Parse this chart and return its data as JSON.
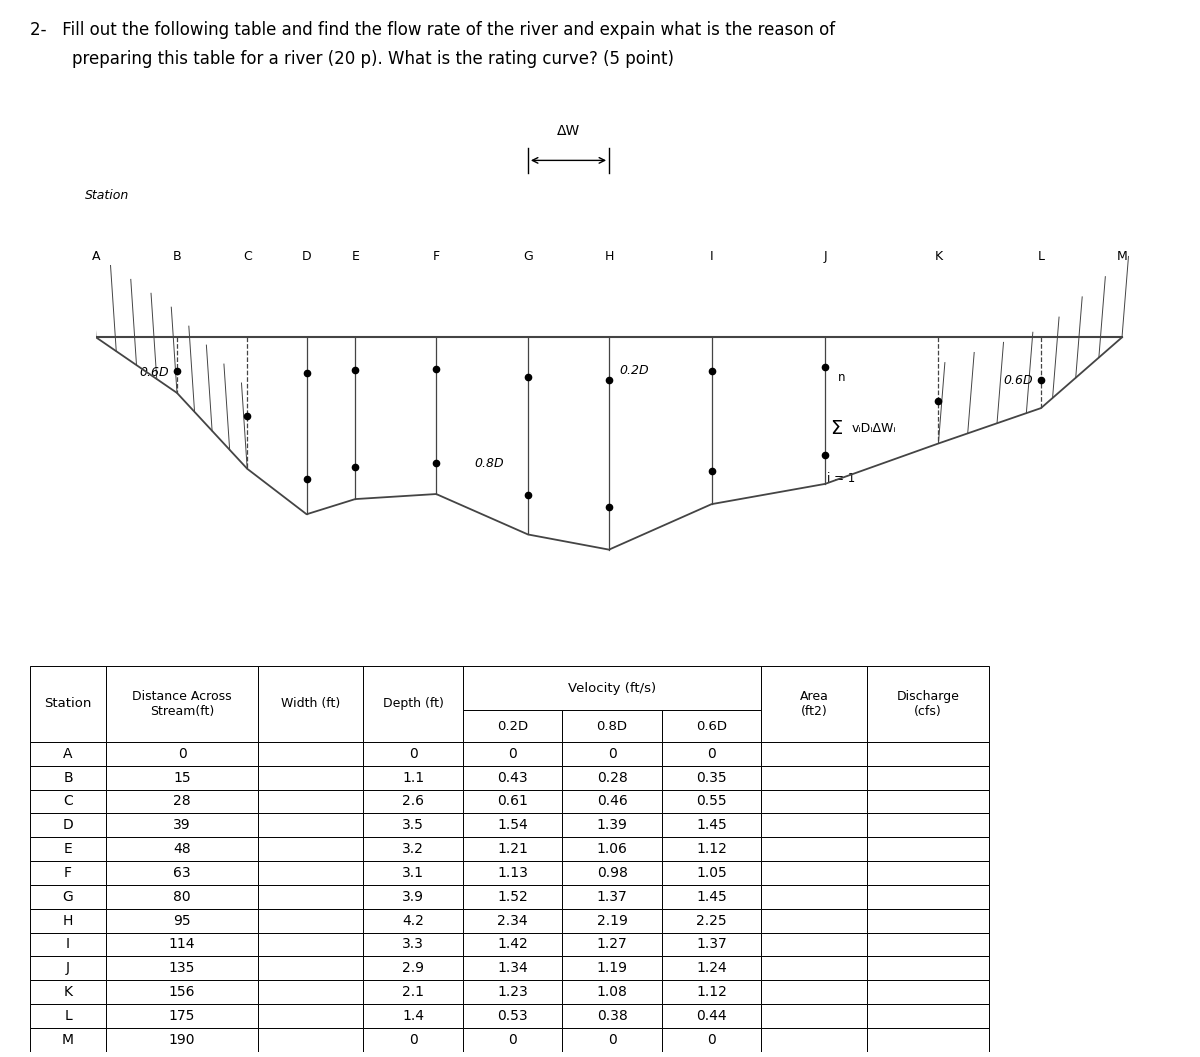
{
  "title_line1": "2-   Fill out the following table and find the flow rate of the river and expain what is the reason of",
  "title_line2": "        preparing this table for a river (20 p). What is the rating curve? (5 point)",
  "station_label": "Station",
  "station_letters": [
    "A",
    "B",
    "C",
    "D",
    "E",
    "F",
    "G",
    "H",
    "I",
    "J",
    "K",
    "L",
    "M"
  ],
  "label_06D_left": "0.6D",
  "label_08D": "0.8D",
  "label_02D": "0.2D",
  "label_06D_right": "0.6D",
  "delta_w_label": "ΔW",
  "sum_formula": "vᵢDᵢΔWᵢ",
  "sum_index": "i = 1",
  "sum_n": "n",
  "velocity_header": "Velocity (ft/s)",
  "stations": [
    "A",
    "B",
    "C",
    "D",
    "E",
    "F",
    "G",
    "H",
    "I",
    "J",
    "K",
    "L",
    "M"
  ],
  "distances": [
    0,
    15,
    28,
    39,
    48,
    63,
    80,
    95,
    114,
    135,
    156,
    175,
    190
  ],
  "depths": [
    0,
    1.1,
    2.6,
    3.5,
    3.2,
    3.1,
    3.9,
    4.2,
    3.3,
    2.9,
    2.1,
    1.4,
    0
  ],
  "vel_02D": [
    0,
    0.43,
    0.61,
    1.54,
    1.21,
    1.13,
    1.52,
    2.34,
    1.42,
    1.34,
    1.23,
    0.53,
    0
  ],
  "vel_08D": [
    0,
    0.28,
    0.46,
    1.39,
    1.06,
    0.98,
    1.37,
    2.19,
    1.27,
    1.19,
    1.08,
    0.38,
    0
  ],
  "vel_06D": [
    0,
    0.35,
    0.55,
    1.45,
    1.12,
    1.05,
    1.45,
    2.25,
    1.37,
    1.24,
    1.12,
    0.44,
    0
  ],
  "bg_color": "#ffffff",
  "text_color": "#000000",
  "title_fontsize": 12,
  "table_fontsize": 10.5,
  "diagram_line_color": "#444444"
}
